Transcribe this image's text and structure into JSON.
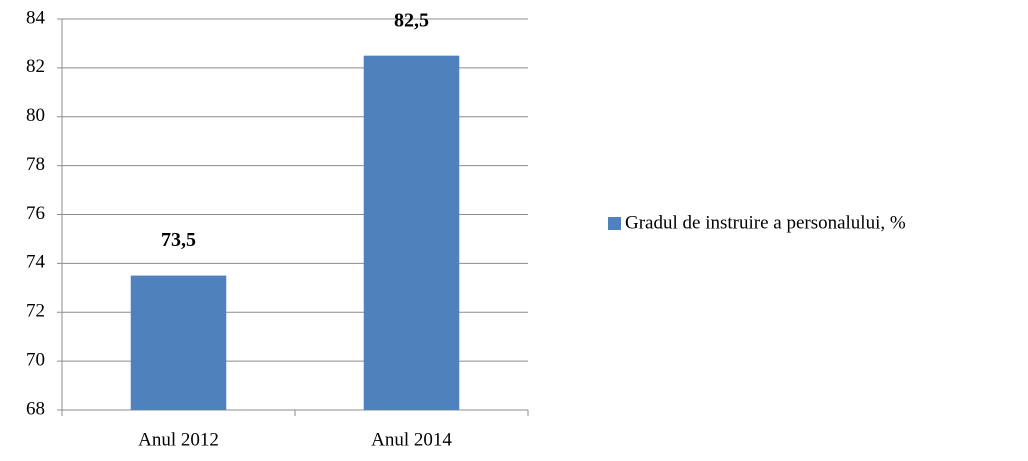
{
  "chart_data": {
    "type": "bar",
    "categories": [
      "Anul 2012",
      "Anul 2014"
    ],
    "series": [
      {
        "name": "Gradul de instruire a personalului, %",
        "color": "#4f81bd",
        "values": [
          73.5,
          82.5
        ],
        "value_labels": [
          "73,5",
          "82,5"
        ]
      }
    ],
    "ylim": [
      68,
      84
    ],
    "yticks": [
      68,
      70,
      72,
      74,
      76,
      78,
      80,
      82,
      84
    ],
    "grid": true,
    "legend": "right"
  }
}
